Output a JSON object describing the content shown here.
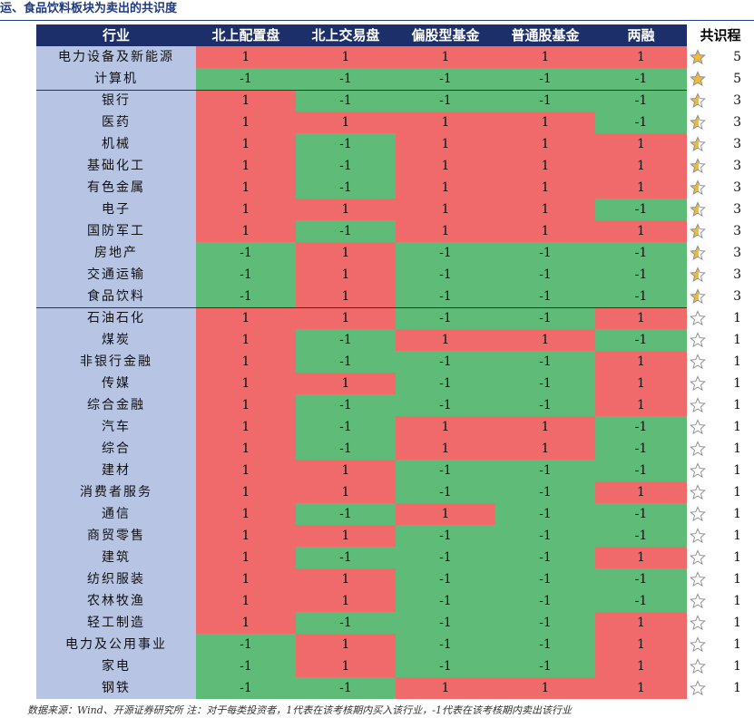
{
  "title": "运、食品饮料板块为卖出的共识度",
  "colors": {
    "buy": "#f0696b",
    "sell": "#5ebc78",
    "header_bg": "#1c2f6b",
    "industry_bg": "#b7c4e3",
    "star_fill": "#f0b93a"
  },
  "chart_data": {
    "type": "table",
    "columns": [
      "行业",
      "北上配置盘",
      "北上交易盘",
      "偏股型基金",
      "普通股基金",
      "两融",
      "共识程"
    ],
    "rows": [
      {
        "industry": "电力设备及新能源",
        "values": [
          1,
          1,
          1,
          1,
          1
        ],
        "consensus": 5
      },
      {
        "industry": "计算机",
        "values": [
          -1,
          -1,
          -1,
          -1,
          -1
        ],
        "consensus": 5
      },
      {
        "industry": "银行",
        "values": [
          1,
          -1,
          -1,
          -1,
          -1
        ],
        "consensus": 3
      },
      {
        "industry": "医药",
        "values": [
          1,
          1,
          1,
          1,
          -1
        ],
        "consensus": 3
      },
      {
        "industry": "机械",
        "values": [
          1,
          -1,
          1,
          1,
          1
        ],
        "consensus": 3
      },
      {
        "industry": "基础化工",
        "values": [
          1,
          -1,
          1,
          1,
          1
        ],
        "consensus": 3
      },
      {
        "industry": "有色金属",
        "values": [
          1,
          -1,
          1,
          1,
          1
        ],
        "consensus": 3
      },
      {
        "industry": "电子",
        "values": [
          1,
          1,
          1,
          1,
          -1
        ],
        "consensus": 3
      },
      {
        "industry": "国防军工",
        "values": [
          1,
          -1,
          1,
          1,
          1
        ],
        "consensus": 3
      },
      {
        "industry": "房地产",
        "values": [
          -1,
          1,
          -1,
          -1,
          -1
        ],
        "consensus": 3
      },
      {
        "industry": "交通运输",
        "values": [
          -1,
          1,
          -1,
          -1,
          -1
        ],
        "consensus": 3
      },
      {
        "industry": "食品饮料",
        "values": [
          -1,
          1,
          -1,
          -1,
          -1
        ],
        "consensus": 3
      },
      {
        "industry": "石油石化",
        "values": [
          1,
          1,
          -1,
          -1,
          1
        ],
        "consensus": 1
      },
      {
        "industry": "煤炭",
        "values": [
          1,
          -1,
          1,
          1,
          -1
        ],
        "consensus": 1
      },
      {
        "industry": "非银行金融",
        "values": [
          1,
          -1,
          -1,
          -1,
          1
        ],
        "consensus": 1
      },
      {
        "industry": "传媒",
        "values": [
          1,
          1,
          -1,
          -1,
          1
        ],
        "consensus": 1
      },
      {
        "industry": "综合金融",
        "values": [
          1,
          -1,
          -1,
          -1,
          1
        ],
        "consensus": 1
      },
      {
        "industry": "汽车",
        "values": [
          1,
          -1,
          1,
          1,
          -1
        ],
        "consensus": 1
      },
      {
        "industry": "综合",
        "values": [
          1,
          -1,
          1,
          1,
          -1
        ],
        "consensus": 1
      },
      {
        "industry": "建材",
        "values": [
          1,
          1,
          -1,
          -1,
          -1
        ],
        "consensus": 1
      },
      {
        "industry": "消费者服务",
        "values": [
          1,
          1,
          -1,
          -1,
          1
        ],
        "consensus": 1
      },
      {
        "industry": "通信",
        "values": [
          1,
          -1,
          1,
          -1,
          -1
        ],
        "consensus": 1
      },
      {
        "industry": "商贸零售",
        "values": [
          1,
          1,
          -1,
          -1,
          -1
        ],
        "consensus": 1
      },
      {
        "industry": "建筑",
        "values": [
          1,
          -1,
          -1,
          -1,
          1
        ],
        "consensus": 1
      },
      {
        "industry": "纺织服装",
        "values": [
          1,
          1,
          -1,
          -1,
          -1
        ],
        "consensus": 1
      },
      {
        "industry": "农林牧渔",
        "values": [
          1,
          1,
          -1,
          -1,
          -1
        ],
        "consensus": 1
      },
      {
        "industry": "轻工制造",
        "values": [
          1,
          -1,
          -1,
          -1,
          1
        ],
        "consensus": 1
      },
      {
        "industry": "电力及公用事业",
        "values": [
          -1,
          1,
          -1,
          -1,
          1
        ],
        "consensus": 1
      },
      {
        "industry": "家电",
        "values": [
          -1,
          1,
          -1,
          -1,
          1
        ],
        "consensus": 1
      },
      {
        "industry": "钢铁",
        "values": [
          -1,
          -1,
          1,
          1,
          1
        ],
        "consensus": 1
      }
    ]
  },
  "footnote": "数据来源：Wind、开源证券研究所 注：对于每类投资者，1代表在该考核期内买入该行业，-1代表在该考核期内卖出该行业"
}
